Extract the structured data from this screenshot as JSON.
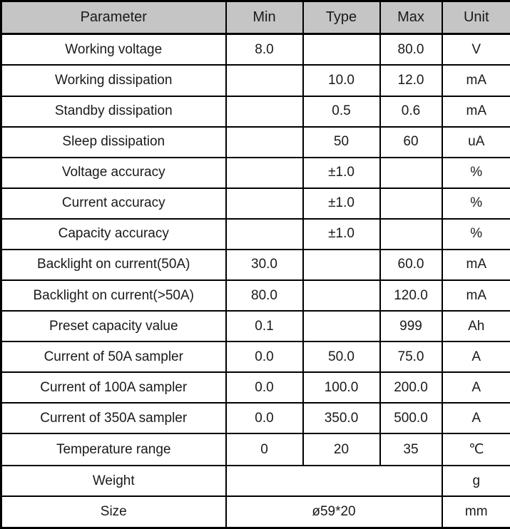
{
  "table": {
    "headers": [
      "Parameter",
      "Min",
      "Type",
      "Max",
      "Unit"
    ],
    "rows": [
      {
        "parameter": "Working voltage",
        "min": "8.0",
        "type": "",
        "max": "80.0",
        "unit": "V"
      },
      {
        "parameter": "Working dissipation",
        "min": "",
        "type": "10.0",
        "max": "12.0",
        "unit": "mA"
      },
      {
        "parameter": "Standby dissipation",
        "min": "",
        "type": "0.5",
        "max": "0.6",
        "unit": "mA"
      },
      {
        "parameter": "Sleep dissipation",
        "min": "",
        "type": "50",
        "max": "60",
        "unit": "uA"
      },
      {
        "parameter": "Voltage accuracy",
        "min": "",
        "type": "±1.0",
        "max": "",
        "unit": "%"
      },
      {
        "parameter": "Current accuracy",
        "min": "",
        "type": "±1.0",
        "max": "",
        "unit": "%"
      },
      {
        "parameter": "Capacity accuracy",
        "min": "",
        "type": "±1.0",
        "max": "",
        "unit": "%"
      },
      {
        "parameter": "Backlight on current(50A)",
        "min": "30.0",
        "type": "",
        "max": "60.0",
        "unit": "mA"
      },
      {
        "parameter": "Backlight on current(>50A)",
        "min": "80.0",
        "type": "",
        "max": "120.0",
        "unit": "mA"
      },
      {
        "parameter": "Preset capacity value",
        "min": "0.1",
        "type": "",
        "max": "999",
        "unit": "Ah"
      },
      {
        "parameter": "Current of 50A sampler",
        "min": "0.0",
        "type": "50.0",
        "max": "75.0",
        "unit": "A"
      },
      {
        "parameter": "Current of 100A sampler",
        "min": "0.0",
        "type": "100.0",
        "max": "200.0",
        "unit": "A"
      },
      {
        "parameter": "Current of 350A sampler",
        "min": "0.0",
        "type": "350.0",
        "max": "500.0",
        "unit": "A"
      },
      {
        "parameter": "Temperature range",
        "min": "0",
        "type": "20",
        "max": "35",
        "unit": "℃"
      },
      {
        "parameter": "Weight",
        "merged": "",
        "unit": "g"
      },
      {
        "parameter": "Size",
        "merged": "ø59*20",
        "unit": "mm"
      }
    ],
    "colors": {
      "header_bg": "#c5c5c5",
      "border": "#000000",
      "text": "#1a1a1a",
      "row_bg": "#ffffff"
    }
  }
}
